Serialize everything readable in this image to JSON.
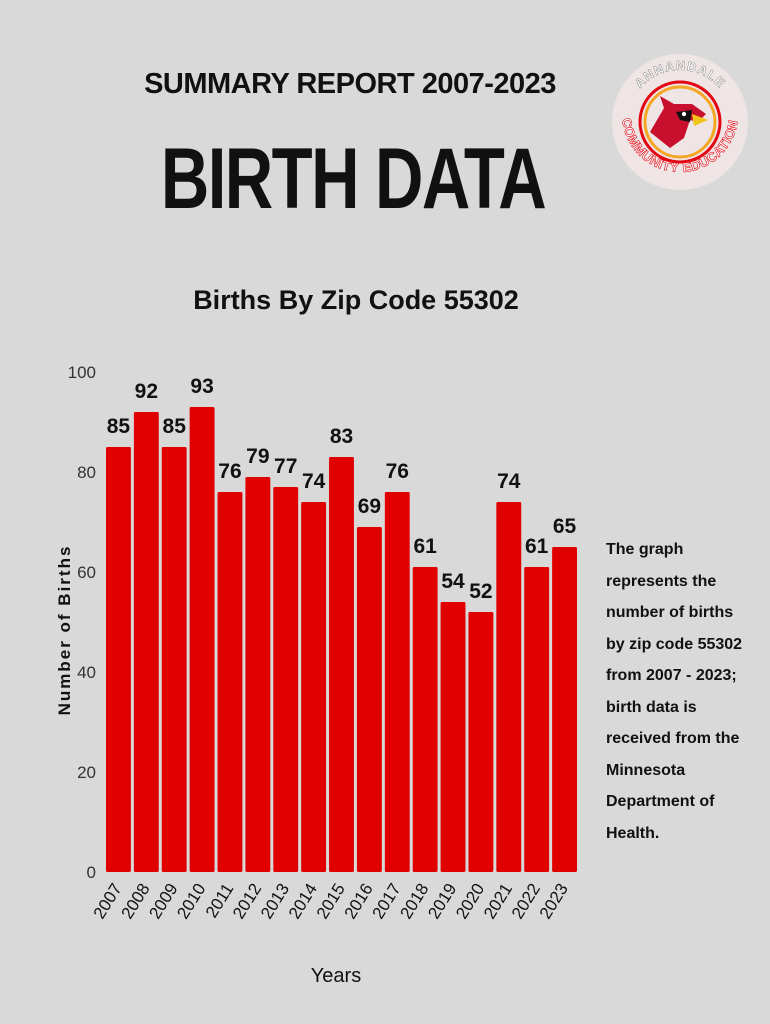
{
  "header": {
    "subtitle": "SUMMARY REPORT 2007-2023",
    "title": "BIRTH DATA"
  },
  "logo": {
    "top_text": "ANNANDALE",
    "left_text": "COMMUNITY",
    "right_text": "EDUCATION",
    "icon": "cardinal-icon",
    "ring_colors": [
      "#e30613",
      "#f5a623"
    ]
  },
  "note": {
    "text": "The graph represents the number of births by zip code 55302 from 2007 - 2023; birth data is received from the Minnesota Department of Health."
  },
  "chart_data": {
    "type": "bar",
    "title": "Births By Zip Code 55302",
    "xlabel": "Years",
    "ylabel": "Number of Births",
    "categories": [
      "2007",
      "2008",
      "2009",
      "2010",
      "2011",
      "2012",
      "2013",
      "2014",
      "2015",
      "2016",
      "2017",
      "2018",
      "2019",
      "2020",
      "2021",
      "2022",
      "2023"
    ],
    "values": [
      85,
      92,
      85,
      93,
      76,
      79,
      77,
      74,
      83,
      69,
      76,
      61,
      54,
      52,
      74,
      61,
      65
    ],
    "ylim": [
      0,
      100
    ],
    "yticks": [
      0,
      20,
      40,
      60,
      80,
      100
    ],
    "bar_color": "#e00000",
    "grid": false
  }
}
